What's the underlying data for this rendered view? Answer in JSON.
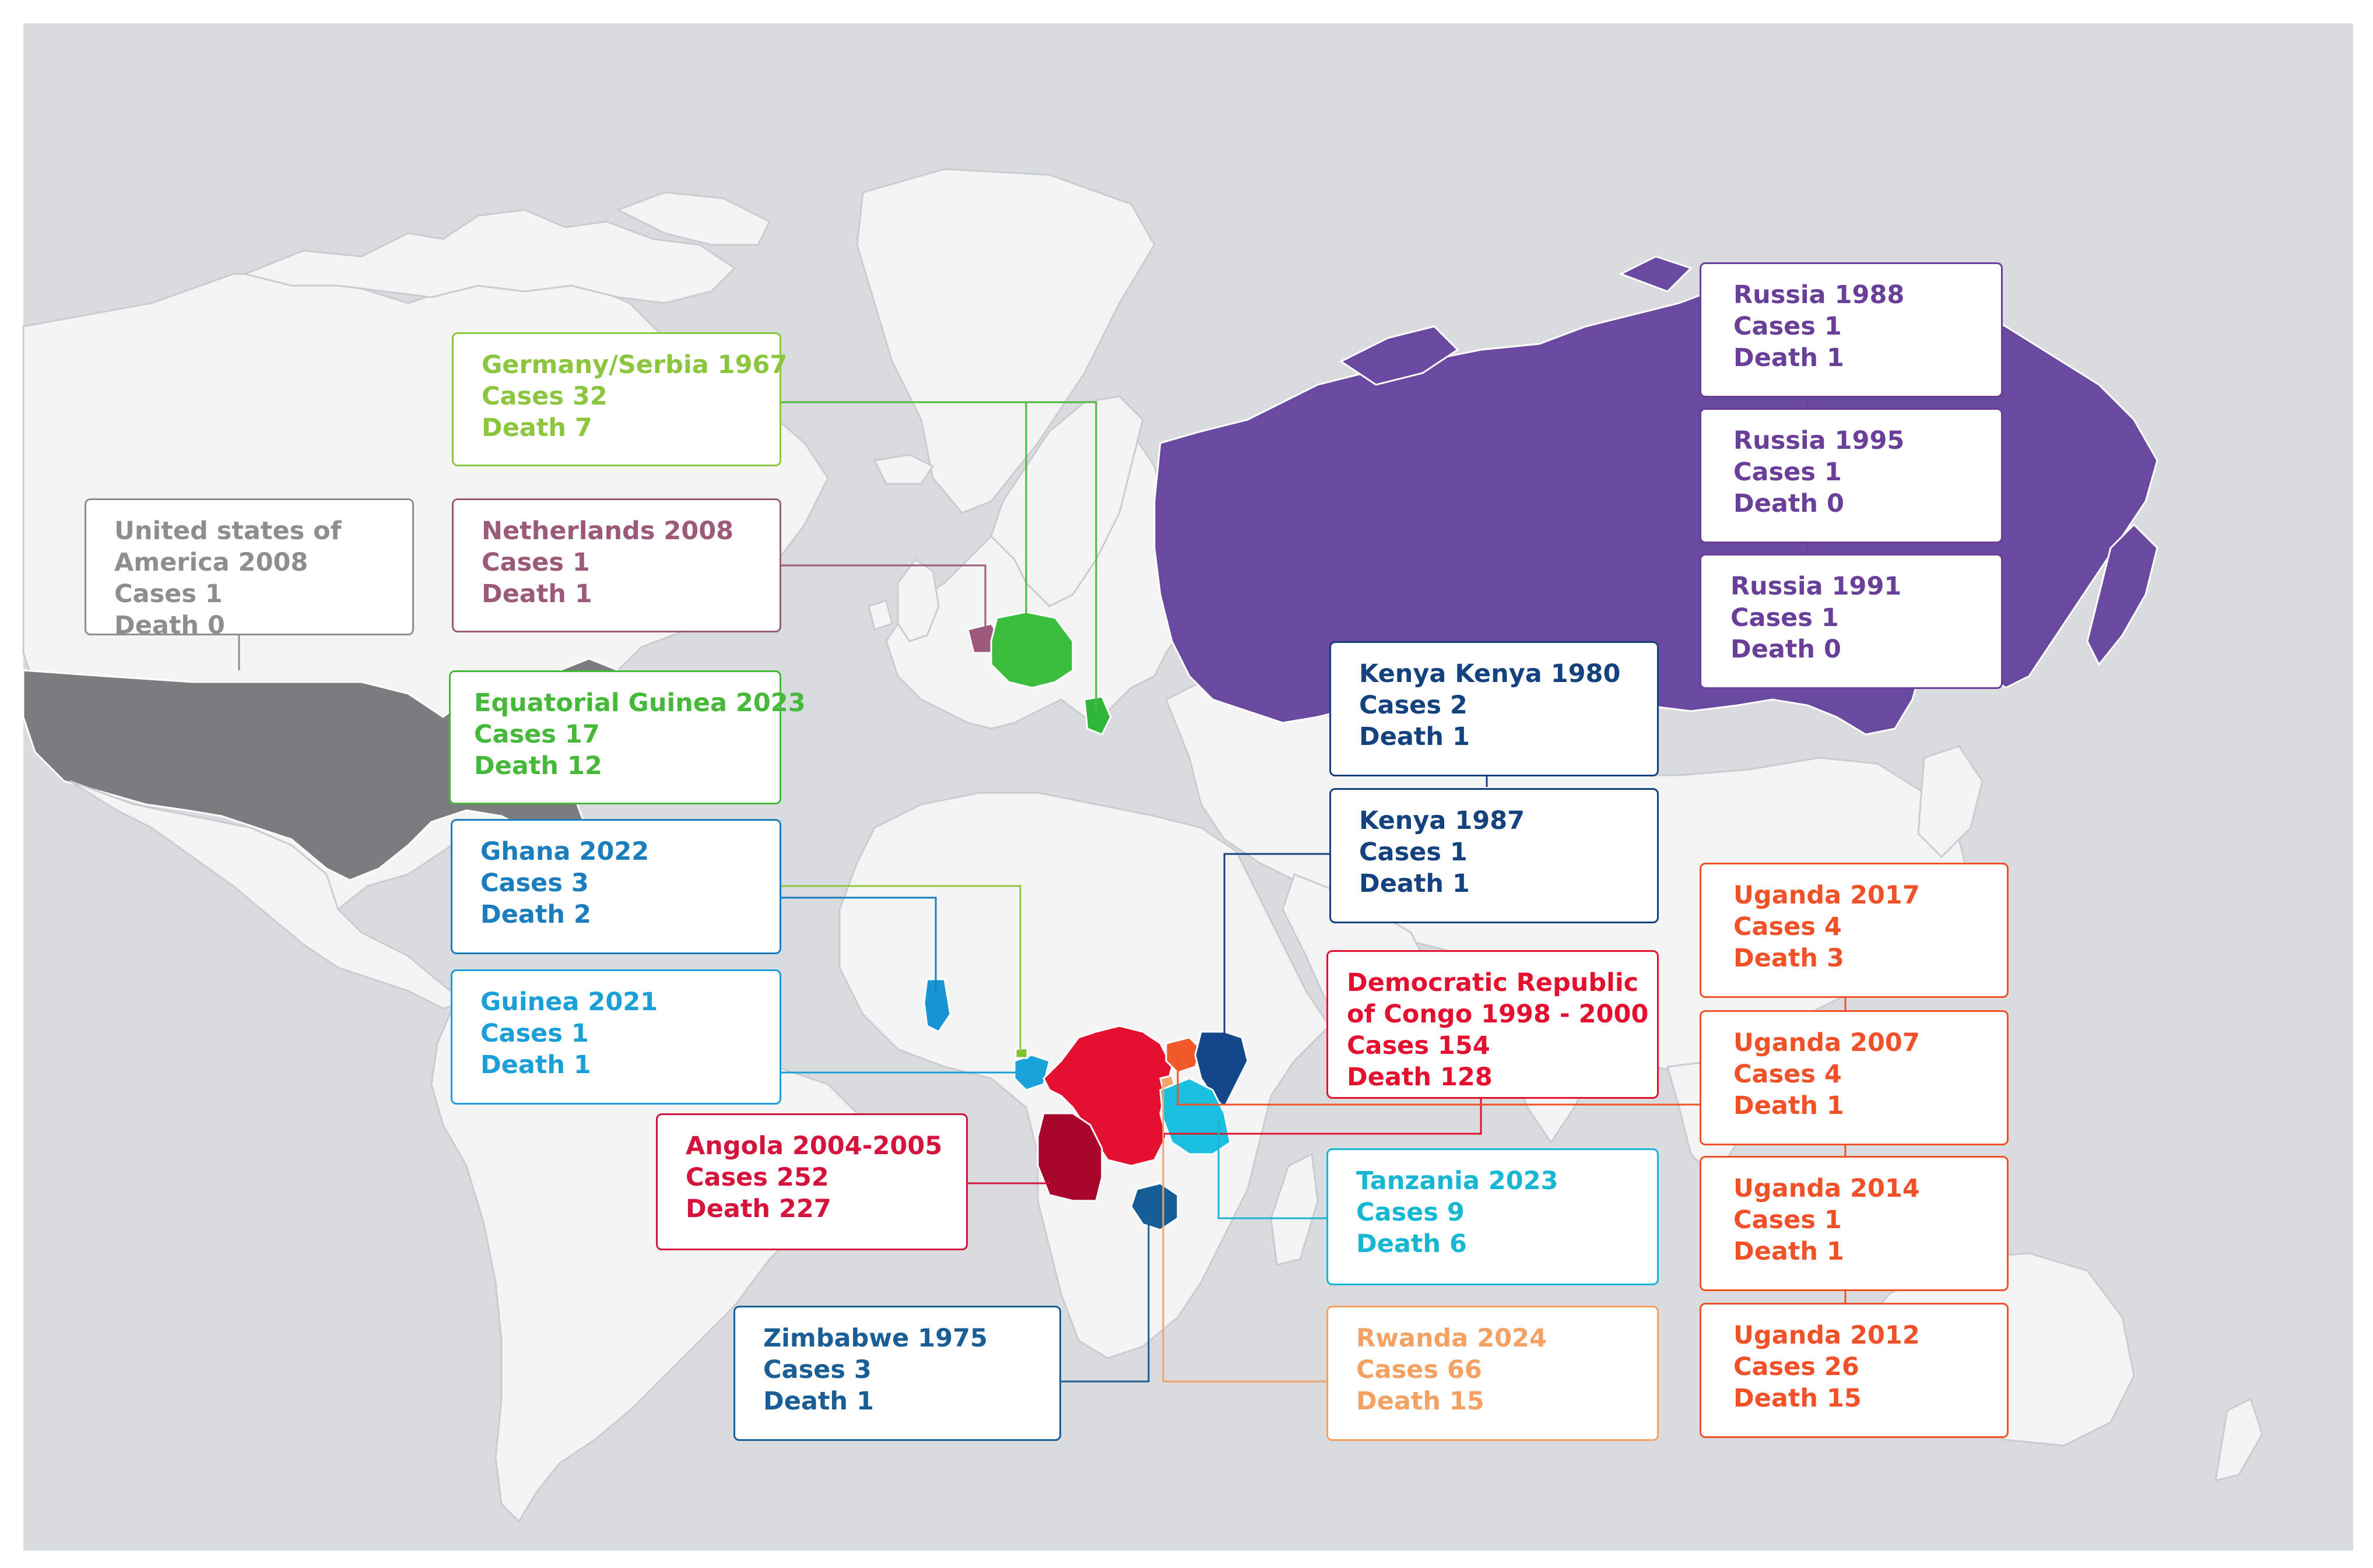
{
  "colors": {
    "ocean": "#d9dcdf",
    "land": "#f4f4f5",
    "border": "#c9ccd0",
    "usa": "#7b7c7e",
    "russia": "#6a49a1",
    "germany": "#3bbd3d",
    "serbia": "#2fb63a",
    "netherlands": "#9e5a7c",
    "drc": "#e3102f",
    "angola": "#a8062b",
    "kenya": "#13488a",
    "tanzania": "#1ac0df",
    "uganda": "#f15a2b",
    "rwanda": "#f5a46a",
    "zimbabwe": "#155e95",
    "ghana": "#1895d3",
    "guinea": "#1aa2db",
    "eq_guinea": "#7cc22d"
  },
  "outbreaks": [
    {
      "id": "usa-2008",
      "title": "United states of\nAmerica 2008",
      "title_lines": [
        "United states of",
        "America 2008"
      ],
      "cases": "Cases 1",
      "death": "Death 0",
      "color": "#8d8e90"
    },
    {
      "id": "germany-serbia-1967",
      "title_lines": [
        "Germany/Serbia 1967"
      ],
      "cases": "Cases 32",
      "death": "Death 7",
      "color": "#8cc63e"
    },
    {
      "id": "netherlands-2008",
      "title_lines": [
        "Netherlands 2008"
      ],
      "cases": "Cases 1",
      "death": "Death 1",
      "color": "#9b5a7a"
    },
    {
      "id": "equatorial-guinea-2023",
      "title_lines": [
        "Equatorial Guinea 2023"
      ],
      "cases": "Cases 17",
      "death": "Death 12",
      "color": "#46b93a"
    },
    {
      "id": "ghana-2022",
      "title_lines": [
        "Ghana 2022"
      ],
      "cases": "Cases 3",
      "death": "Death 2",
      "color": "#1a7dbd"
    },
    {
      "id": "guinea-2021",
      "title_lines": [
        "Guinea 2021"
      ],
      "cases": "Cases 1",
      "death": "Death 1",
      "color": "#1a9fd8"
    },
    {
      "id": "angola-2004",
      "title_lines": [
        "Angola 2004-2005"
      ],
      "cases": "Cases 252",
      "death": "Death 227",
      "color": "#d4143c"
    },
    {
      "id": "zimbabwe-1975",
      "title_lines": [
        "Zimbabwe 1975"
      ],
      "cases": "Cases 3",
      "death": "Death 1",
      "color": "#1b5e96"
    },
    {
      "id": "russia-1988",
      "title_lines": [
        "Russia 1988"
      ],
      "cases": "Cases 1",
      "death": "Death 1",
      "color": "#6a3f9a"
    },
    {
      "id": "russia-1995",
      "title_lines": [
        "Russia 1995"
      ],
      "cases": "Cases 1",
      "death": "Death 0",
      "color": "#6a3f9a"
    },
    {
      "id": "russia-1991",
      "title_lines": [
        "Russia 1991"
      ],
      "cases": "Cases 1",
      "death": "Death 0",
      "color": "#6a3f9a"
    },
    {
      "id": "kenya-1980",
      "title_lines": [
        "Kenya Kenya 1980"
      ],
      "cases": "Cases 2",
      "death": "Death 1",
      "color": "#14427e"
    },
    {
      "id": "kenya-1987",
      "title_lines": [
        "Kenya 1987"
      ],
      "cases": "Cases 1",
      "death": "Death 1",
      "color": "#14427e"
    },
    {
      "id": "drc-1998",
      "title_lines": [
        "Democratic Republic",
        "of Congo 1998 - 2000"
      ],
      "cases": "Cases 154",
      "death": "Death 128",
      "color": "#e3102f"
    },
    {
      "id": "tanzania-2023",
      "title_lines": [
        "Tanzania 2023"
      ],
      "cases": "Cases 9",
      "death": "Death 6",
      "color": "#17b6d3"
    },
    {
      "id": "rwanda-2024",
      "title_lines": [
        "Rwanda 2024"
      ],
      "cases": "Cases 66",
      "death": "Death 15",
      "color": "#f3a263"
    },
    {
      "id": "uganda-2017",
      "title_lines": [
        "Uganda 2017"
      ],
      "cases": "Cases 4",
      "death": "Death 3",
      "color": "#f05129"
    },
    {
      "id": "uganda-2007",
      "title_lines": [
        "Uganda 2007"
      ],
      "cases": "Cases 4",
      "death": "Death 1",
      "color": "#f05129"
    },
    {
      "id": "uganda-2014",
      "title_lines": [
        "Uganda 2014"
      ],
      "cases": "Cases 1",
      "death": "Death 1",
      "color": "#f05129"
    },
    {
      "id": "uganda-2012",
      "title_lines": [
        "Uganda 2012"
      ],
      "cases": "Cases 26",
      "death": "Death 15",
      "color": "#f05129"
    }
  ]
}
